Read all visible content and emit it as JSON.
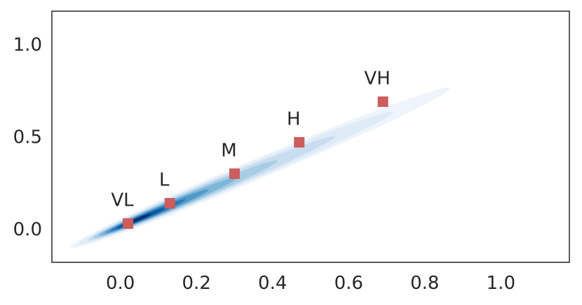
{
  "chart_data": {
    "type": "scatter",
    "title": "",
    "xlabel": "",
    "ylabel": "",
    "xlim": [
      -0.18,
      1.18
    ],
    "ylim": [
      -0.18,
      1.18
    ],
    "xticks": [
      0.0,
      0.2,
      0.4,
      0.6,
      0.8,
      1.0
    ],
    "xtick_labels": [
      "0.0",
      "0.2",
      "0.4",
      "0.6",
      "0.8",
      "1.0"
    ],
    "yticks": [
      0.0,
      0.5,
      1.0
    ],
    "ytick_labels": [
      "0.0",
      "0.5",
      "1.0"
    ],
    "grid": false,
    "density": {
      "kind": "kde-contour",
      "colormap": "Blues",
      "center": [
        0.02,
        0.03
      ],
      "direction_angle_deg": 41,
      "levels": [
        {
          "along_min": -0.2,
          "along_max": 1.12,
          "half_width": 0.045,
          "color": "#eef4fb"
        },
        {
          "along_min": -0.17,
          "along_max": 0.92,
          "half_width": 0.037,
          "color": "#dfebf7"
        },
        {
          "along_min": -0.14,
          "along_max": 0.72,
          "half_width": 0.03,
          "color": "#c9ddf0"
        },
        {
          "along_min": -0.12,
          "along_max": 0.52,
          "half_width": 0.025,
          "color": "#a6cde4"
        },
        {
          "along_min": -0.1,
          "along_max": 0.38,
          "half_width": 0.02,
          "color": "#7db6d9"
        },
        {
          "along_min": -0.08,
          "along_max": 0.28,
          "half_width": 0.016,
          "color": "#5198c9"
        },
        {
          "along_min": -0.06,
          "along_max": 0.2,
          "half_width": 0.012,
          "color": "#2a78b8"
        },
        {
          "along_min": -0.04,
          "along_max": 0.13,
          "half_width": 0.009,
          "color": "#0c5aa1"
        },
        {
          "along_min": -0.02,
          "along_max": 0.08,
          "half_width": 0.006,
          "color": "#08306b"
        }
      ]
    },
    "points": [
      {
        "label": "VL",
        "x": 0.02,
        "y": 0.03
      },
      {
        "label": "L",
        "x": 0.13,
        "y": 0.14
      },
      {
        "label": "M",
        "x": 0.3,
        "y": 0.3
      },
      {
        "label": "H",
        "x": 0.47,
        "y": 0.47
      },
      {
        "label": "VH",
        "x": 0.69,
        "y": 0.69
      }
    ],
    "marker": {
      "shape": "square",
      "color": "#cd5c5c"
    },
    "axes_color": "#262626"
  }
}
